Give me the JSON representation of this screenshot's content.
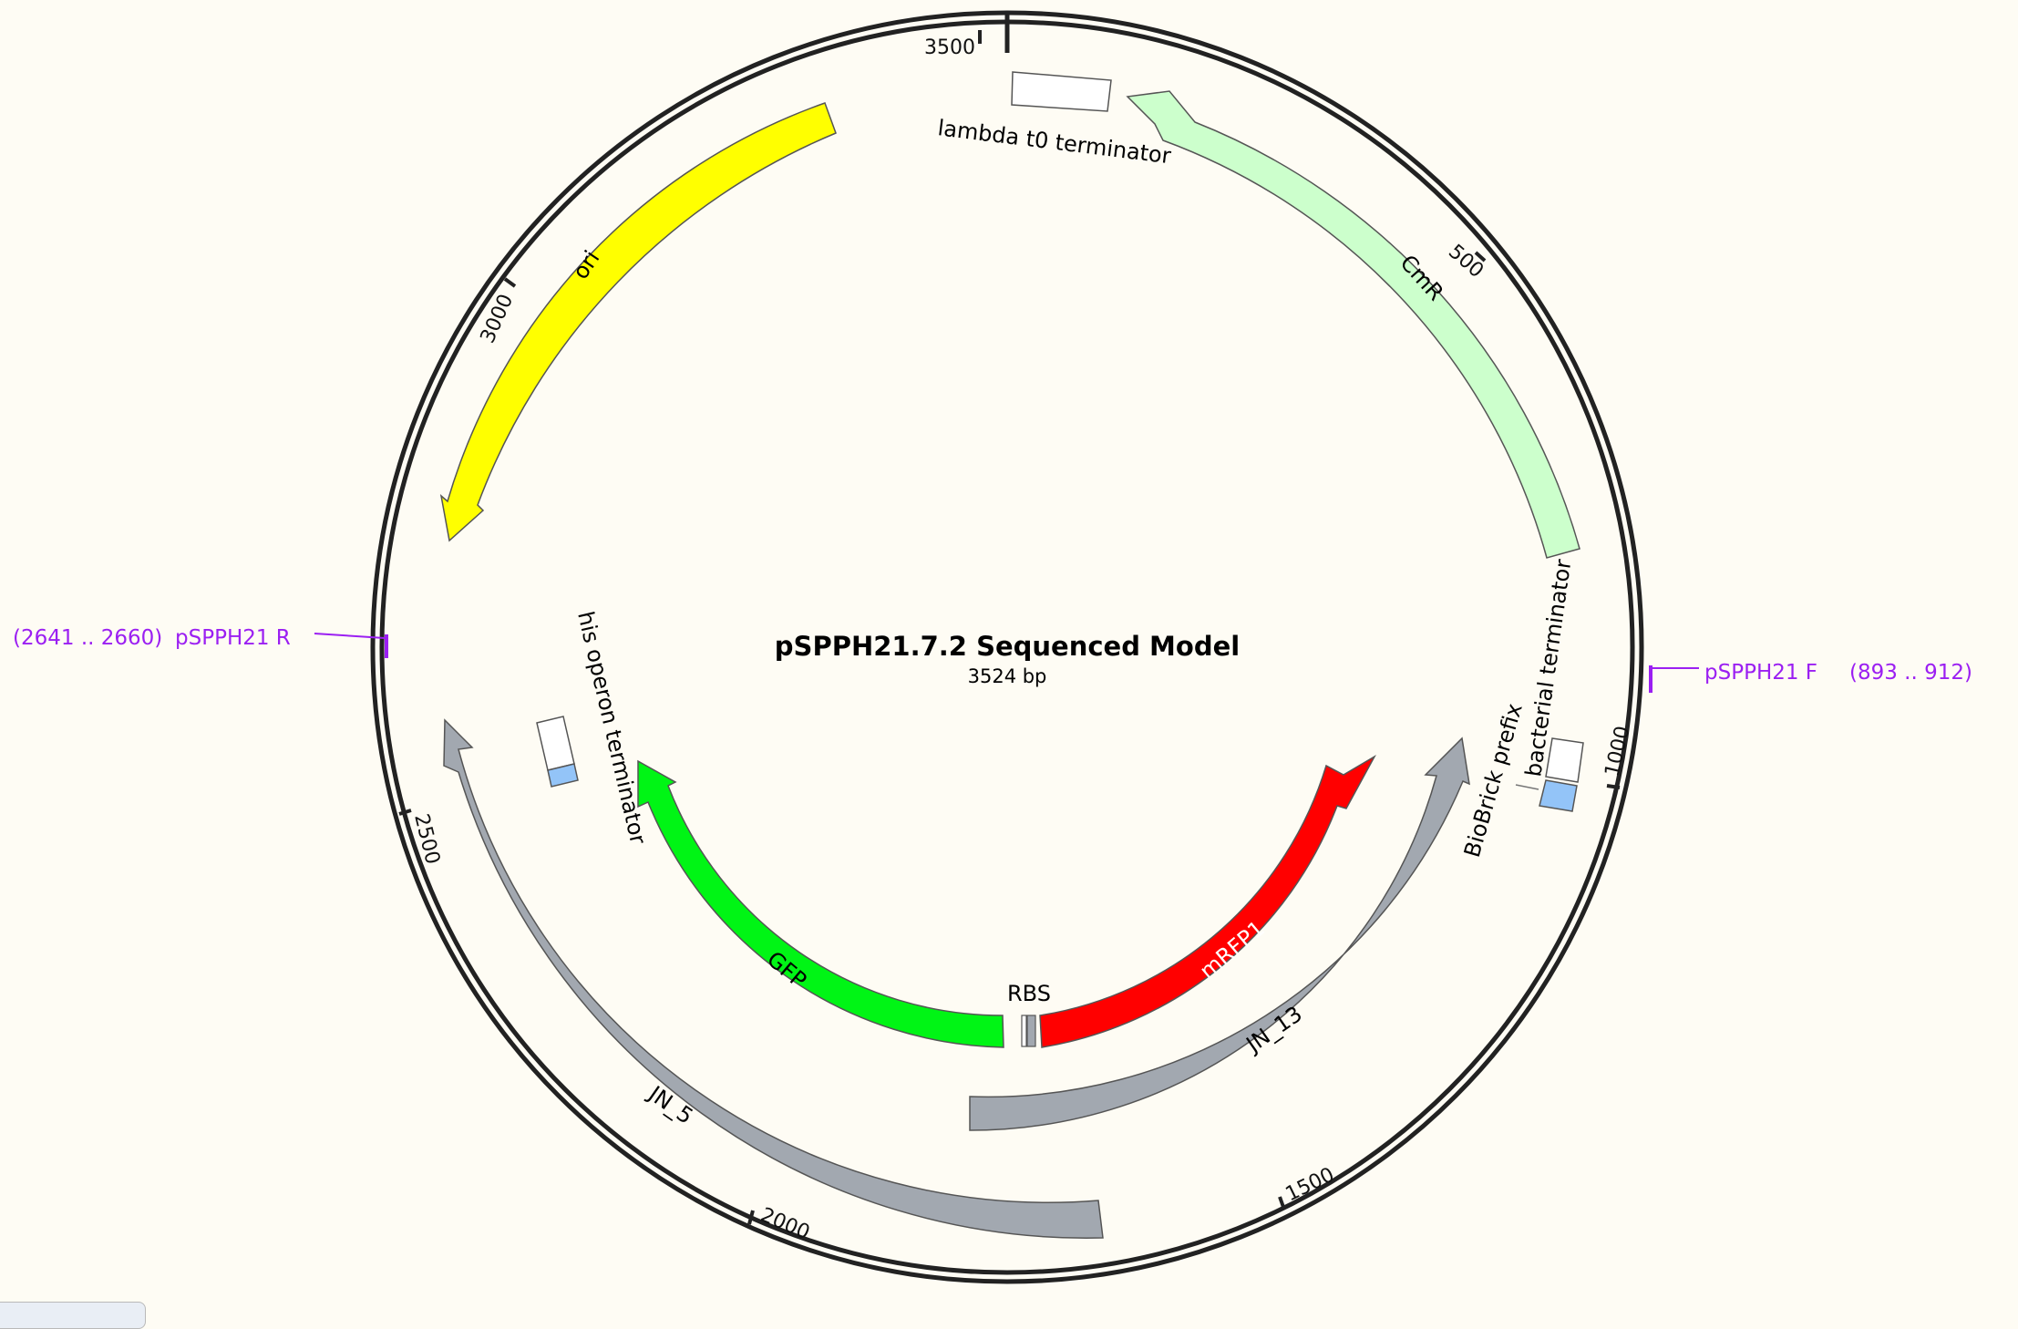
{
  "map": {
    "title": "pSPPH21.7.2 Sequenced Model",
    "length_label": "3524 bp",
    "length_bp": 3524
  },
  "ticks": [
    {
      "pos": 0,
      "label": ""
    },
    {
      "pos": 500,
      "label": "500"
    },
    {
      "pos": 1000,
      "label": "1000"
    },
    {
      "pos": 1500,
      "label": "1500"
    },
    {
      "pos": 2000,
      "label": "2000"
    },
    {
      "pos": 2500,
      "label": "2500"
    },
    {
      "pos": 3000,
      "label": "3000"
    },
    {
      "pos": 3500,
      "label": "3500"
    }
  ],
  "features": [
    {
      "name": "CmR",
      "type": "arrow",
      "color": "#ccffcc",
      "text_color": "#000000",
      "direction": "reverse"
    },
    {
      "name": "ori",
      "type": "arrow",
      "color": "#ffff00",
      "text_color": "#000000",
      "direction": "reverse"
    },
    {
      "name": "JN_5",
      "type": "arrow",
      "color": "#a2a8b0",
      "text_color": "#000000",
      "direction": "reverse"
    },
    {
      "name": "JN_13",
      "type": "arrow",
      "color": "#a2a8b0",
      "text_color": "#000000",
      "direction": "forward"
    },
    {
      "name": "GFP",
      "type": "arrow",
      "color": "#00f515",
      "text_color": "#000000",
      "direction": "reverse"
    },
    {
      "name": "mRFP1",
      "type": "arrow",
      "color": "#ff0000",
      "text_color": "#ffffff",
      "direction": "forward"
    },
    {
      "name": "RBS",
      "type": "box",
      "color": "#a2a8b0"
    },
    {
      "name": "lambda t0 terminator",
      "type": "box",
      "color": "#ffffff"
    },
    {
      "name": "bacterial terminator",
      "type": "box",
      "color": "#ffffff"
    },
    {
      "name": "BioBrick prefix",
      "type": "box",
      "color": "#93c4f8"
    },
    {
      "name": "his operon terminator",
      "type": "box",
      "color": "#ffffff"
    }
  ],
  "primers": [
    {
      "name": "pSPPH21 R",
      "range": "(2641 .. 2660)",
      "color": "#9b1ff2"
    },
    {
      "name": "pSPPH21 F",
      "range": "(893 .. 912)",
      "color": "#9b1ff2"
    }
  ]
}
